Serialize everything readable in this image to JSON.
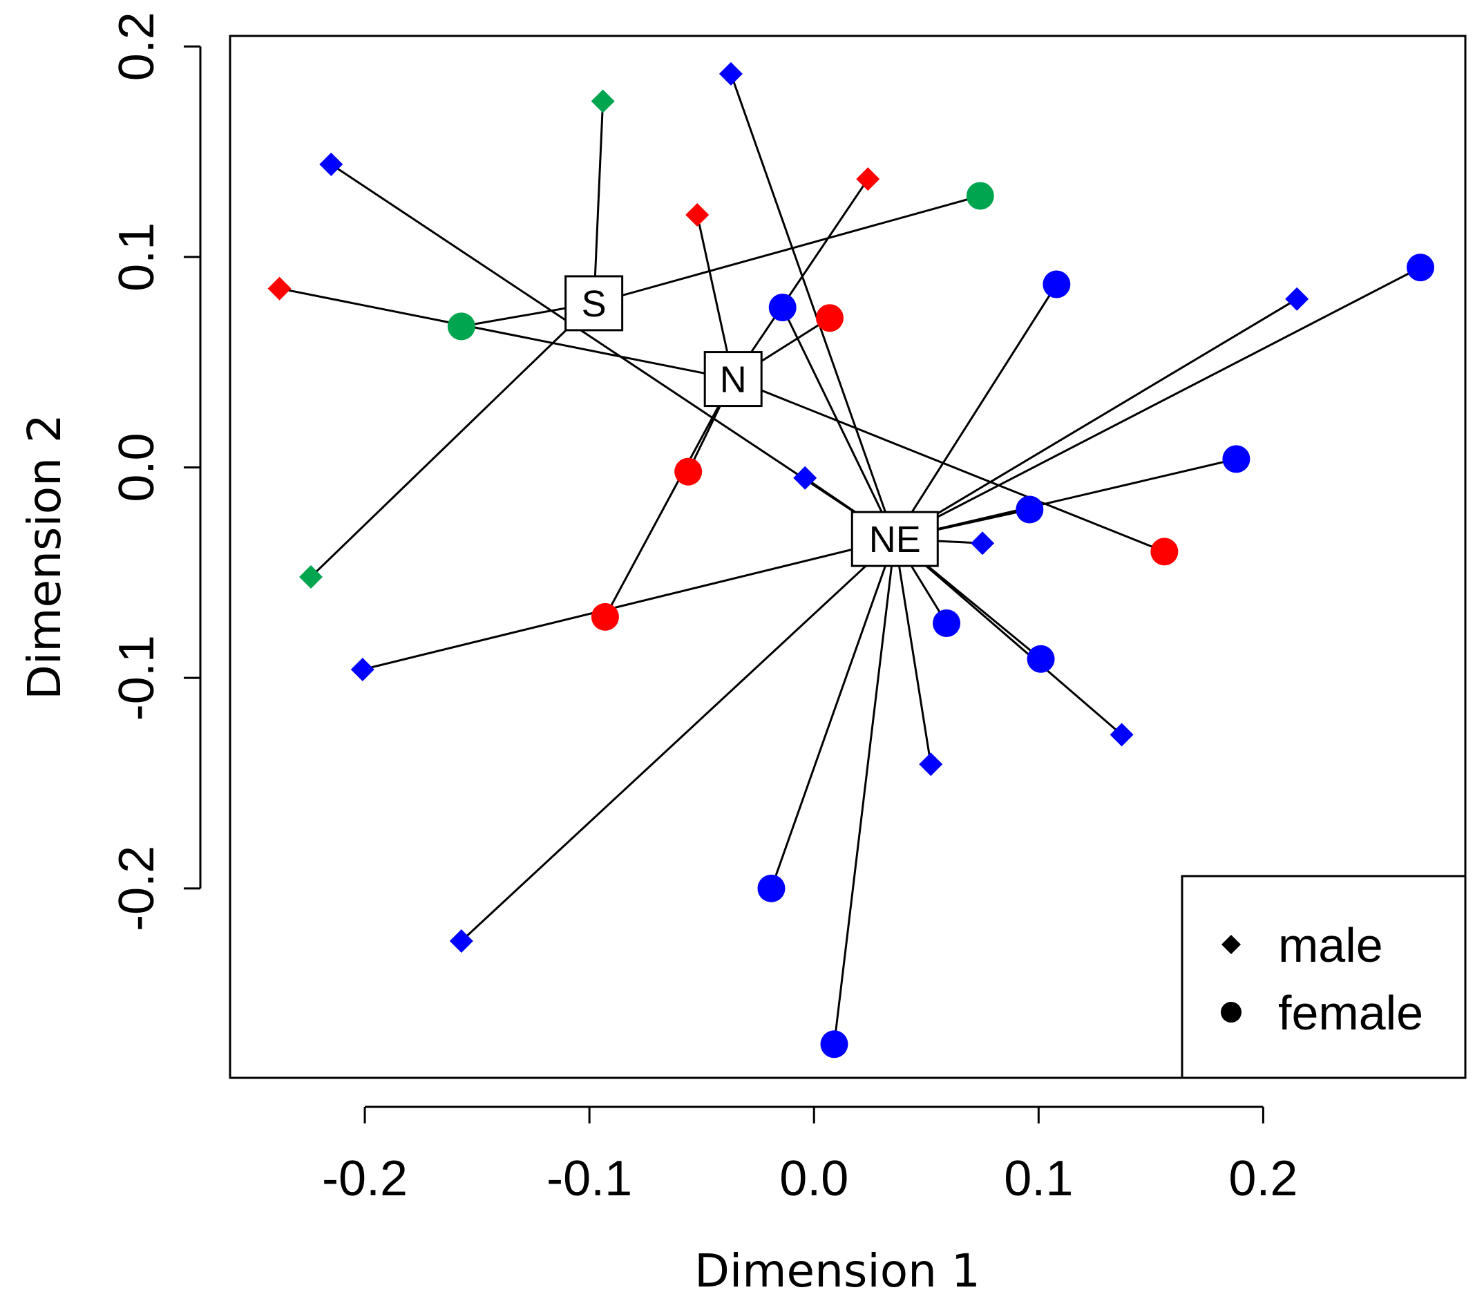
{
  "chart_data": {
    "type": "scatter",
    "title": "",
    "xlabel": "Dimension 1",
    "ylabel": "Dimension 2",
    "xlim": [
      -0.26,
      0.29
    ],
    "ylim": [
      -0.29,
      0.205
    ],
    "xticks": [
      -0.2,
      -0.1,
      0.0,
      0.1,
      0.2
    ],
    "xtick_labels": [
      "-0.2",
      "-0.1",
      "0.0",
      "0.1",
      "0.2"
    ],
    "yticks": [
      -0.2,
      -0.1,
      0.0,
      0.1,
      0.2
    ],
    "ytick_labels": [
      "-0.2",
      "-0.1",
      "0.0",
      "0.1",
      "0.2"
    ],
    "colors": {
      "blue": "#0000ff",
      "red": "#ff0000",
      "green": "#00a550",
      "line": "#000000"
    },
    "legend": {
      "position": "bottom-right",
      "entries": [
        {
          "label": "male",
          "shape": "diamond"
        },
        {
          "label": "female",
          "shape": "circle"
        }
      ]
    },
    "centroids": [
      {
        "label": "S",
        "x": -0.098,
        "y": 0.078
      },
      {
        "label": "N",
        "x": -0.036,
        "y": 0.042
      },
      {
        "label": "NE",
        "x": 0.036,
        "y": -0.034
      }
    ],
    "points": [
      {
        "x": 0.074,
        "y": 0.129,
        "sex": "female",
        "color": "green",
        "group": "S"
      },
      {
        "x": -0.157,
        "y": 0.067,
        "sex": "female",
        "color": "green",
        "group": "S"
      },
      {
        "x": -0.094,
        "y": 0.174,
        "sex": "male",
        "color": "green",
        "group": "S"
      },
      {
        "x": -0.224,
        "y": -0.052,
        "sex": "male",
        "color": "green",
        "group": "S"
      },
      {
        "x": -0.238,
        "y": 0.085,
        "sex": "male",
        "color": "red",
        "group": "N"
      },
      {
        "x": -0.052,
        "y": 0.12,
        "sex": "male",
        "color": "red",
        "group": "N"
      },
      {
        "x": 0.024,
        "y": 0.137,
        "sex": "male",
        "color": "red",
        "group": "N"
      },
      {
        "x": 0.007,
        "y": 0.071,
        "sex": "female",
        "color": "red",
        "group": "N"
      },
      {
        "x": -0.056,
        "y": -0.002,
        "sex": "female",
        "color": "red",
        "group": "N"
      },
      {
        "x": -0.093,
        "y": -0.071,
        "sex": "female",
        "color": "red",
        "group": "N"
      },
      {
        "x": 0.156,
        "y": -0.04,
        "sex": "female",
        "color": "red",
        "group": "N"
      },
      {
        "x": -0.215,
        "y": 0.144,
        "sex": "male",
        "color": "blue",
        "group": "NE"
      },
      {
        "x": -0.037,
        "y": 0.187,
        "sex": "male",
        "color": "blue",
        "group": "NE"
      },
      {
        "x": -0.014,
        "y": 0.076,
        "sex": "female",
        "color": "blue",
        "group": "NE"
      },
      {
        "x": 0.108,
        "y": 0.087,
        "sex": "female",
        "color": "blue",
        "group": "NE"
      },
      {
        "x": 0.215,
        "y": 0.08,
        "sex": "male",
        "color": "blue",
        "group": "NE"
      },
      {
        "x": 0.27,
        "y": 0.095,
        "sex": "female",
        "color": "blue",
        "group": "NE"
      },
      {
        "x": 0.188,
        "y": 0.004,
        "sex": "female",
        "color": "blue",
        "group": "NE"
      },
      {
        "x": -0.004,
        "y": -0.005,
        "sex": "male",
        "color": "blue",
        "group": "NE"
      },
      {
        "x": 0.096,
        "y": -0.02,
        "sex": "female",
        "color": "blue",
        "group": "NE"
      },
      {
        "x": 0.075,
        "y": -0.036,
        "sex": "male",
        "color": "blue",
        "group": "NE"
      },
      {
        "x": 0.059,
        "y": -0.074,
        "sex": "female",
        "color": "blue",
        "group": "NE"
      },
      {
        "x": 0.101,
        "y": -0.091,
        "sex": "female",
        "color": "blue",
        "group": "NE"
      },
      {
        "x": 0.137,
        "y": -0.127,
        "sex": "male",
        "color": "blue",
        "group": "NE"
      },
      {
        "x": 0.052,
        "y": -0.141,
        "sex": "male",
        "color": "blue",
        "group": "NE"
      },
      {
        "x": -0.201,
        "y": -0.096,
        "sex": "male",
        "color": "blue",
        "group": "NE"
      },
      {
        "x": -0.019,
        "y": -0.2,
        "sex": "female",
        "color": "blue",
        "group": "NE"
      },
      {
        "x": -0.157,
        "y": -0.225,
        "sex": "male",
        "color": "blue",
        "group": "NE"
      },
      {
        "x": 0.009,
        "y": -0.274,
        "sex": "female",
        "color": "blue",
        "group": "NE"
      }
    ]
  }
}
